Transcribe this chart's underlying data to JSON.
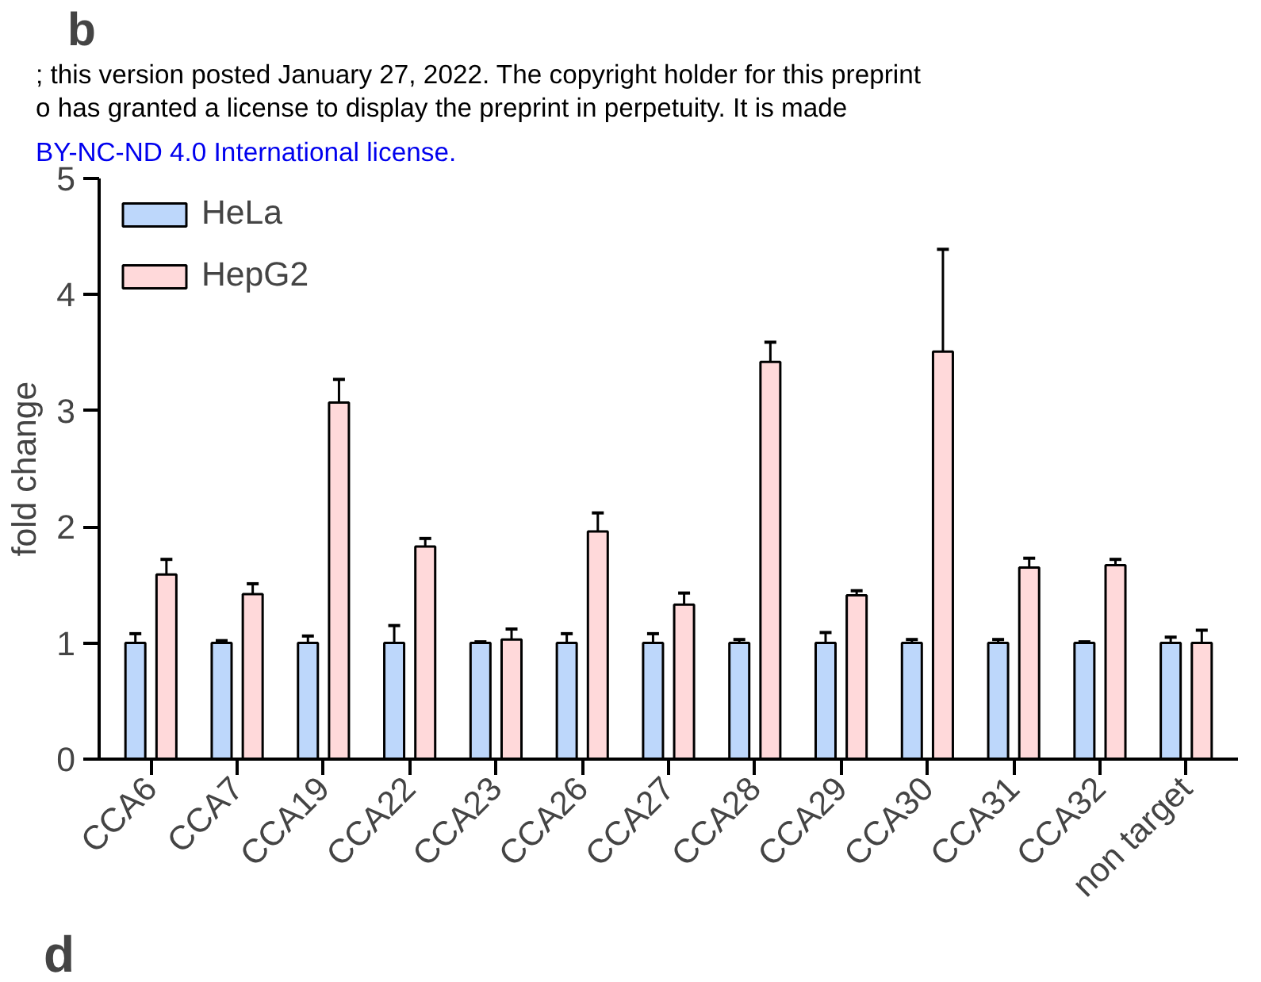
{
  "chart_data": {
    "type": "bar",
    "annotations": [
      "; this version posted January 27, 2022. The copyright holder for this preprint",
      "o has granted a license to display the preprint in perpetuity. It is made",
      "BY-NC-ND 4.0 International license.",
      "b",
      "d"
    ],
    "ylabel": "fold change",
    "categories": [
      "CCA6",
      "CCA7",
      "CCA19",
      "CCA22",
      "CCA23",
      "CCA26",
      "CCA27",
      "CCA28",
      "CCA29",
      "CCA30",
      "CCA31",
      "CCA32",
      "non target"
    ],
    "series": [
      {
        "name": "HeLa",
        "color": "#bdd7fb",
        "values": [
          1,
          1,
          1,
          1,
          1,
          1,
          1,
          1,
          1,
          1,
          1,
          1,
          1
        ],
        "errors": [
          [
            1,
            1.08
          ],
          [
            1,
            1.02
          ],
          [
            1,
            1.06
          ],
          [
            1,
            1.15
          ],
          [
            1,
            1.01
          ],
          [
            1,
            1.08
          ],
          [
            1,
            1.08
          ],
          [
            1,
            1.03
          ],
          [
            1,
            1.09
          ],
          [
            1,
            1.03
          ],
          [
            1,
            1.03
          ],
          [
            1,
            1.01
          ],
          [
            1,
            1.05
          ]
        ]
      },
      {
        "name": "HepG2",
        "color": "#ffd9da",
        "values": [
          1.59,
          1.42,
          3.07,
          1.83,
          1.03,
          1.96,
          1.33,
          3.42,
          1.41,
          3.51,
          1.65,
          1.67,
          1.0
        ],
        "errors": [
          [
            1.59,
            1.72
          ],
          [
            1.42,
            1.51
          ],
          [
            3.07,
            3.27
          ],
          [
            1.83,
            1.9
          ],
          [
            1.03,
            1.12
          ],
          [
            1.96,
            2.12
          ],
          [
            1.33,
            1.43
          ],
          [
            3.42,
            3.59
          ],
          [
            1.41,
            1.45
          ],
          [
            3.51,
            4.39
          ],
          [
            1.65,
            1.73
          ],
          [
            1.67,
            1.72
          ],
          [
            1.0,
            1.11
          ]
        ]
      }
    ],
    "ylim": [
      0,
      5
    ],
    "yticks": [
      0,
      1,
      2,
      3,
      4,
      5
    ],
    "grid": false,
    "legend": "top left"
  }
}
